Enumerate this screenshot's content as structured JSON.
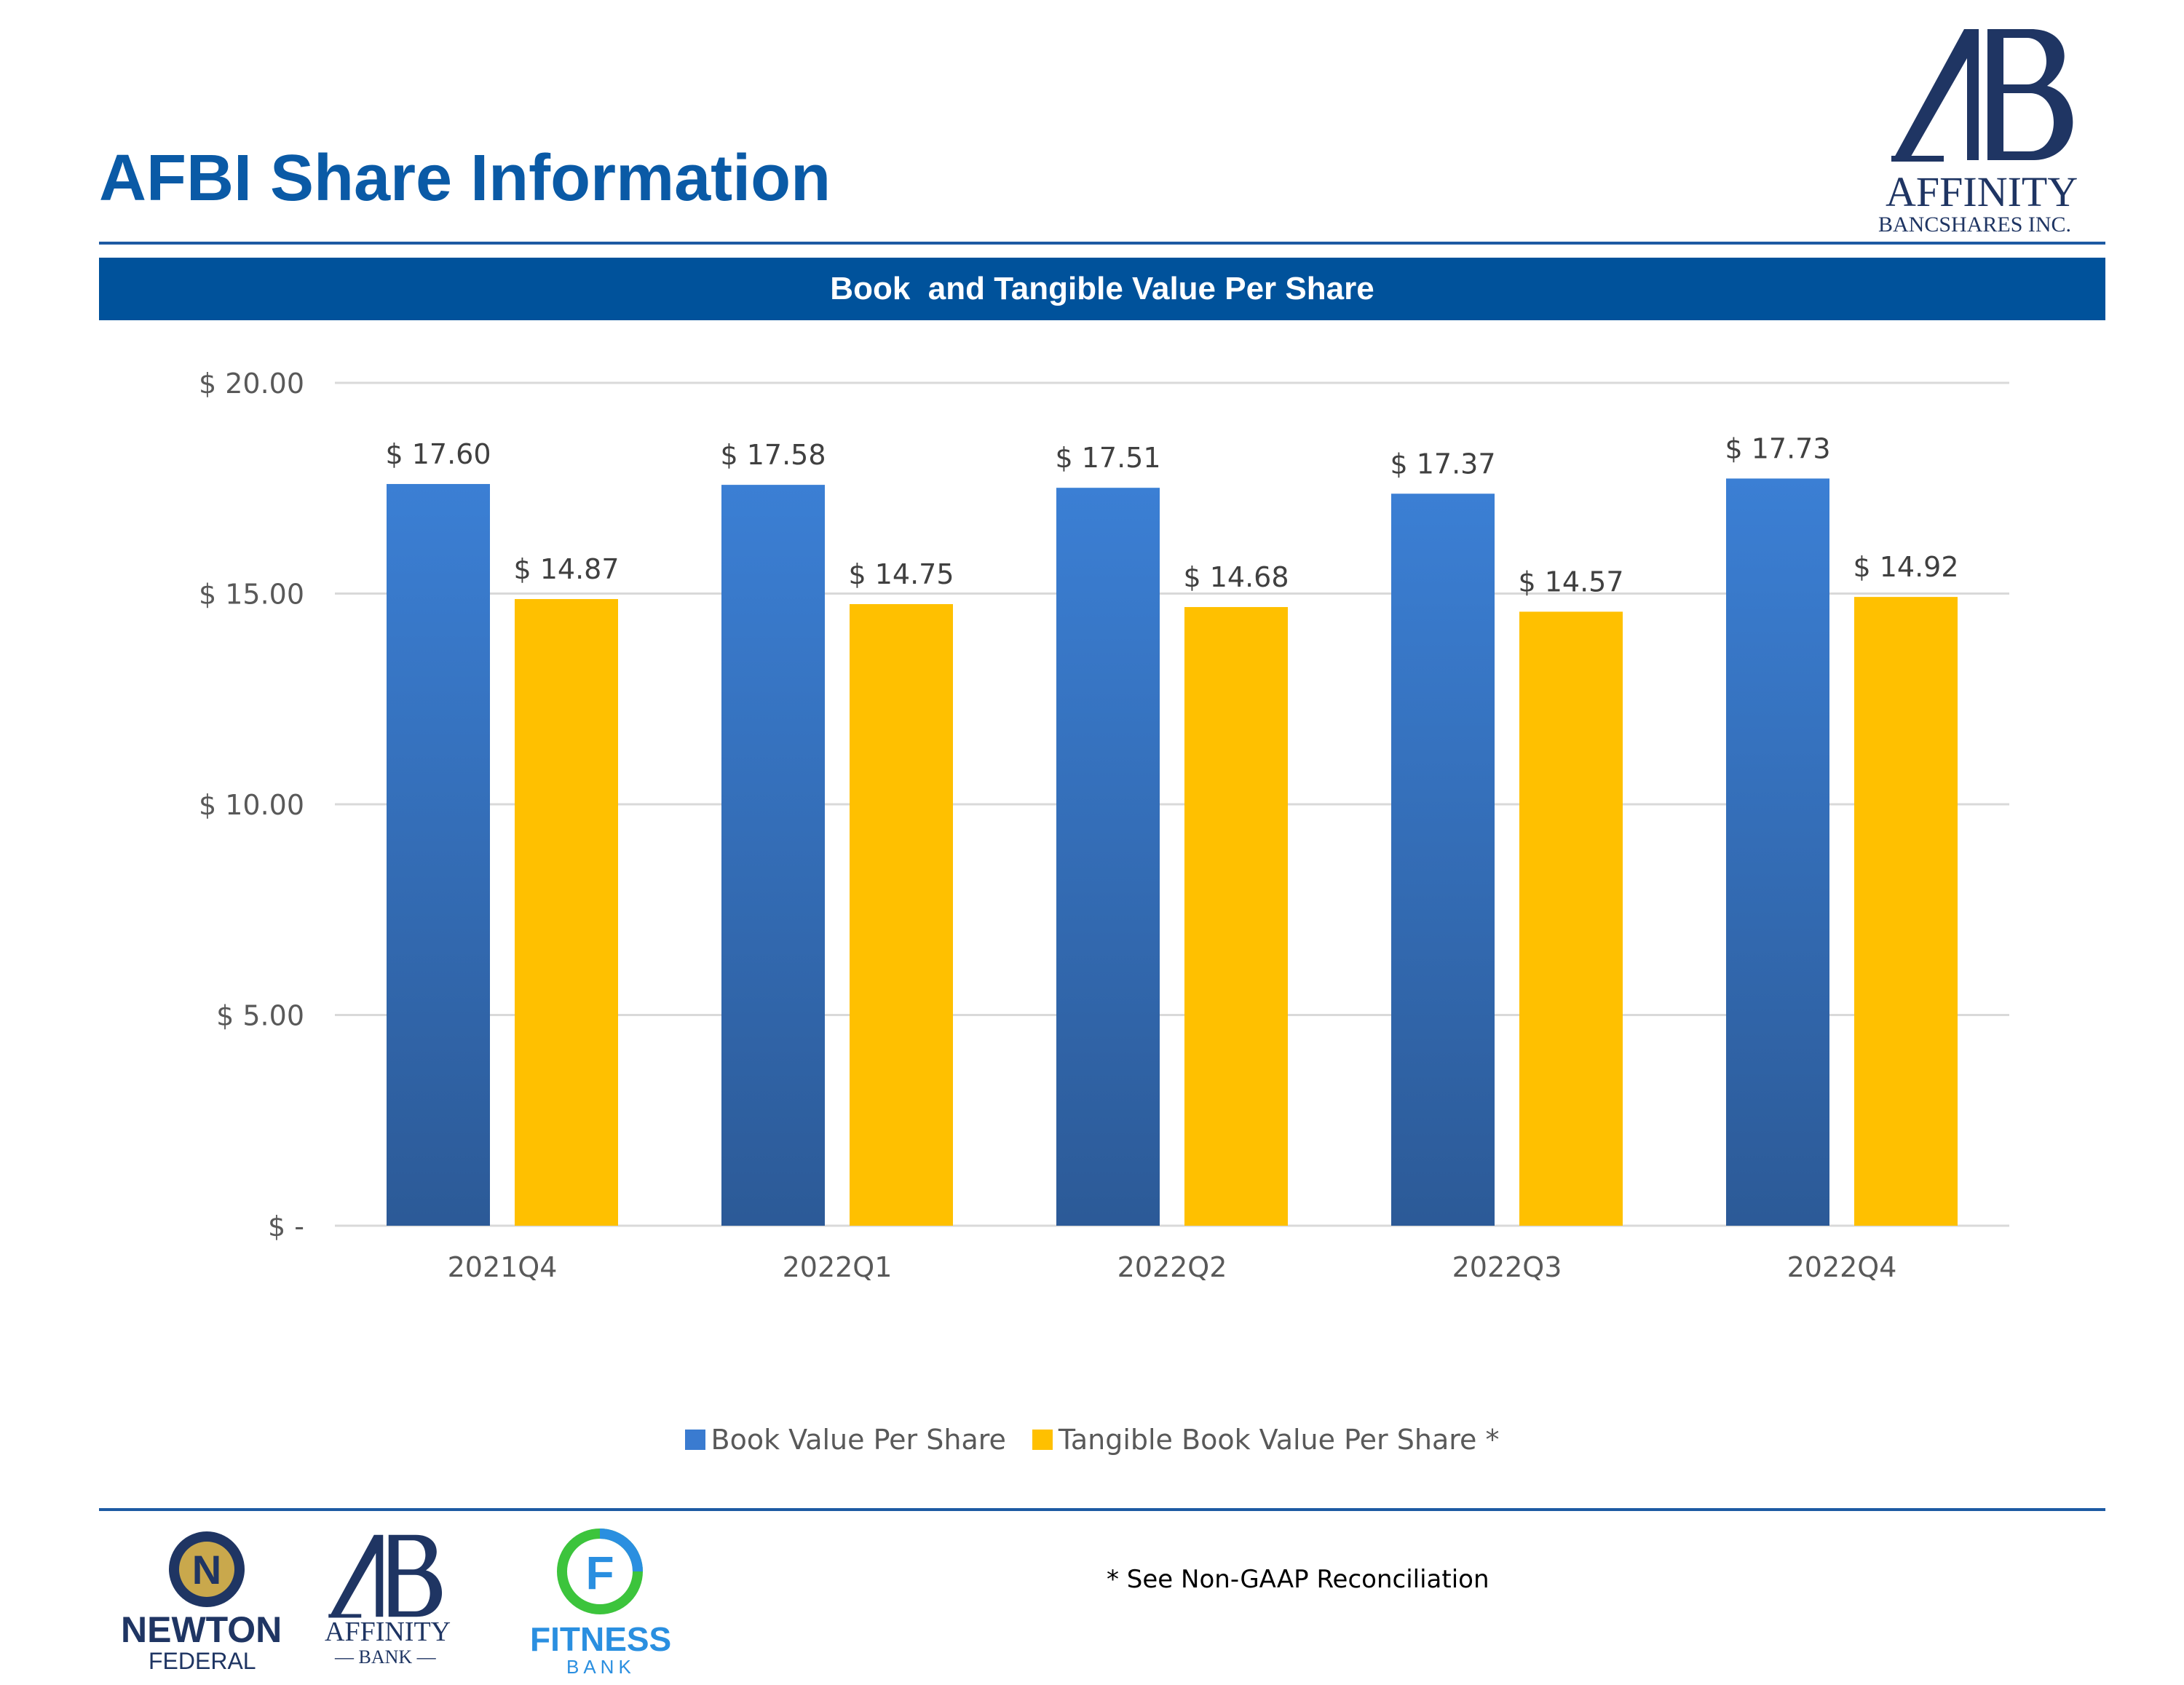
{
  "page": {
    "title": "AFBI Share Information"
  },
  "banner": {
    "label": "Book  and Tangible Value Per Share"
  },
  "chart_data": {
    "type": "bar",
    "title": "Book  and Tangible Value Per Share",
    "categories": [
      "2021Q4",
      "2022Q1",
      "2022Q2",
      "2022Q3",
      "2022Q4"
    ],
    "series": [
      {
        "name": "Book Value Per Share",
        "values": [
          17.6,
          17.58,
          17.51,
          17.37,
          17.73
        ],
        "labels": [
          "$ 17.60",
          "$ 17.58",
          "$ 17.51",
          "$ 17.37",
          "$ 17.73"
        ],
        "color": "#3a7bd0"
      },
      {
        "name": "Tangible Book Value Per Share *",
        "values": [
          14.87,
          14.75,
          14.68,
          14.57,
          14.92
        ],
        "labels": [
          "$ 14.87",
          "$ 14.75",
          "$ 14.68",
          "$ 14.57",
          "$ 14.92"
        ],
        "color": "#ffc000"
      }
    ],
    "ylim": [
      0,
      20
    ],
    "yticks": [
      0,
      5,
      10,
      15,
      20
    ],
    "ytick_labels": [
      "$ -",
      "$ 5.00",
      "$ 10.00",
      "$ 15.00",
      "$ 20.00"
    ],
    "grid": true,
    "legend": "bottom"
  },
  "footnote": "* See Non-GAAP Reconciliation",
  "logos": {
    "affinity_bancshares": {
      "line1": "AFFINITY",
      "line2": "BANCSHARES INC."
    },
    "newton_federal": {
      "line1": "NEWTON",
      "line2": "FEDERAL"
    },
    "affinity_bank": {
      "line1": "AFFINITY",
      "line2": "— BANK —"
    },
    "fitness_bank": {
      "line1": "FITNESS",
      "line2": "BANK"
    }
  },
  "colors": {
    "brand_blue": "#00529b",
    "title_blue": "#0a5aa6",
    "navy": "#1f3563"
  }
}
